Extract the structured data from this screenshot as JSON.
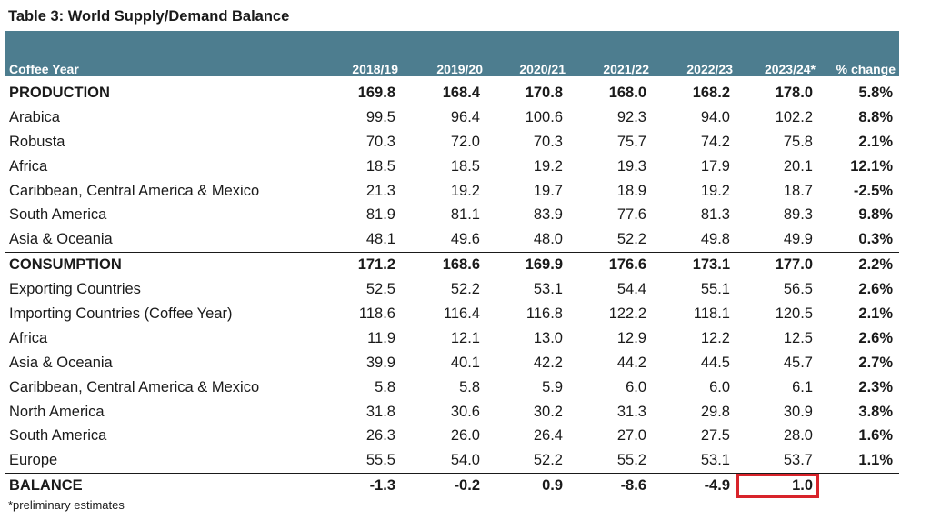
{
  "title": "Table 3: World Supply/Demand Balance",
  "columns": [
    "Coffee Year",
    "2018/19",
    "2019/20",
    "2020/21",
    "2021/22",
    "2022/23",
    "2023/24*",
    "% change"
  ],
  "rows": [
    {
      "label": "PRODUCTION",
      "values": [
        "169.8",
        "168.4",
        "170.8",
        "168.0",
        "168.2",
        "178.0",
        "5.8%"
      ]
    },
    {
      "label": "Arabica",
      "values": [
        "99.5",
        "96.4",
        "100.6",
        "92.3",
        "94.0",
        "102.2",
        "8.8%"
      ]
    },
    {
      "label": "Robusta",
      "values": [
        "70.3",
        "72.0",
        "70.3",
        "75.7",
        "74.2",
        "75.8",
        "2.1%"
      ]
    },
    {
      "label": "Africa",
      "values": [
        "18.5",
        "18.5",
        "19.2",
        "19.3",
        "17.9",
        "20.1",
        "12.1%"
      ]
    },
    {
      "label": "Caribbean, Central America & Mexico",
      "values": [
        "21.3",
        "19.2",
        "19.7",
        "18.9",
        "19.2",
        "18.7",
        "-2.5%"
      ]
    },
    {
      "label": "South America",
      "values": [
        "81.9",
        "81.1",
        "83.9",
        "77.6",
        "81.3",
        "89.3",
        "9.8%"
      ]
    },
    {
      "label": "Asia & Oceania",
      "values": [
        "48.1",
        "49.6",
        "48.0",
        "52.2",
        "49.8",
        "49.9",
        "0.3%"
      ]
    },
    {
      "label": "CONSUMPTION",
      "values": [
        "171.2",
        "168.6",
        "169.9",
        "176.6",
        "173.1",
        "177.0",
        "2.2%"
      ]
    },
    {
      "label": "Exporting Countries",
      "values": [
        "52.5",
        "52.2",
        "53.1",
        "54.4",
        "55.1",
        "56.5",
        "2.6%"
      ]
    },
    {
      "label": "Importing Countries (Coffee Year)",
      "values": [
        "118.6",
        "116.4",
        "116.8",
        "122.2",
        "118.1",
        "120.5",
        "2.1%"
      ]
    },
    {
      "label": "Africa",
      "values": [
        "11.9",
        "12.1",
        "13.0",
        "12.9",
        "12.2",
        "12.5",
        "2.6%"
      ]
    },
    {
      "label": "Asia & Oceania",
      "values": [
        "39.9",
        "40.1",
        "42.2",
        "44.2",
        "44.5",
        "45.7",
        "2.7%"
      ]
    },
    {
      "label": "Caribbean, Central America & Mexico",
      "values": [
        "5.8",
        "5.8",
        "5.9",
        "6.0",
        "6.0",
        "6.1",
        "2.3%"
      ]
    },
    {
      "label": "North America",
      "values": [
        "31.8",
        "30.6",
        "30.2",
        "31.3",
        "29.8",
        "30.9",
        "3.8%"
      ]
    },
    {
      "label": "South America",
      "values": [
        "26.3",
        "26.0",
        "26.4",
        "27.0",
        "27.5",
        "28.0",
        "1.6%"
      ]
    },
    {
      "label": "Europe",
      "values": [
        "55.5",
        "54.0",
        "52.2",
        "55.2",
        "53.1",
        "53.7",
        "1.1%"
      ]
    },
    {
      "label": "BALANCE",
      "values": [
        "-1.3",
        "-0.2",
        "0.9",
        "-8.6",
        "-4.9",
        "1.0",
        ""
      ]
    }
  ],
  "footnote": "*preliminary estimates",
  "colors": {
    "header_bg": "#4d7d8f",
    "highlight_border": "#d8232a"
  }
}
